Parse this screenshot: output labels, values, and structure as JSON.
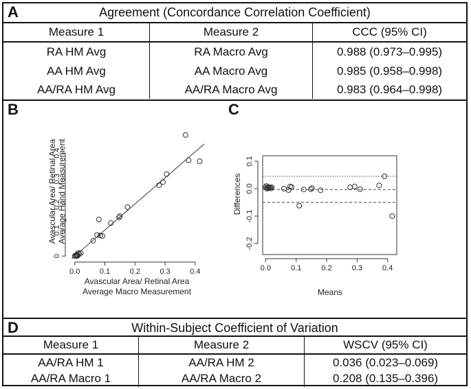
{
  "panelA": {
    "letter": "A",
    "title": "Agreement (Concordance Correlation Coefficient)",
    "headers": [
      "Measure 1",
      "Measure 2",
      "CCC (95% CI)"
    ],
    "rows": [
      [
        "RA HM Avg",
        "RA Macro Avg",
        "0.988 (0.973–0.995)"
      ],
      [
        "AA HM Avg",
        "AA Macro Avg",
        "0.985 (0.958–0.998)"
      ],
      [
        "AA/RA HM Avg",
        "AA/RA Macro Avg",
        "0.983 (0.964–0.998)"
      ]
    ]
  },
  "panelB": {
    "letter": "B"
  },
  "panelC": {
    "letter": "C"
  },
  "panelD": {
    "letter": "D",
    "title": "Within-Subject Coefficient of Variation",
    "headers": [
      "Measure 1",
      "Measure 2",
      "WSCV (95% CI)"
    ],
    "rows": [
      [
        "AA/RA HM 1",
        "AA/RA HM 2",
        "0.036 (0.023–0.069)"
      ],
      [
        "AA/RA Macro 1",
        "AA/RA Macro 2",
        "0.208 (0.135–0.396)"
      ]
    ]
  },
  "chart_data": [
    {
      "type": "scatter",
      "panel": "B",
      "xlabel": "Avascular Area/ Retinal Area\nAverage Macro Measurement",
      "ylabel": "Avascular Area/ Retinal Area\nAverage Hand Measurement",
      "xlim": [
        -0.02,
        0.43
      ],
      "ylim": [
        -0.01,
        0.48
      ],
      "xticks": [
        "0.0",
        "0.1",
        "0.2",
        "0.3",
        "0.4"
      ],
      "yticks": [
        "0",
        "0.1",
        "0.2",
        "0.3",
        "0.4"
      ],
      "fit_line": {
        "x": [
          -0.01,
          0.43
        ],
        "y": [
          -0.01,
          0.435
        ]
      },
      "points": [
        [
          0.0,
          0.0
        ],
        [
          0.003,
          0.003
        ],
        [
          0.005,
          0.001
        ],
        [
          0.007,
          0.006
        ],
        [
          0.008,
          0.004
        ],
        [
          0.01,
          0.002
        ],
        [
          0.012,
          0.012
        ],
        [
          0.015,
          0.008
        ],
        [
          0.02,
          0.012
        ],
        [
          0.006,
          0.0
        ],
        [
          0.061,
          0.06
        ],
        [
          0.074,
          0.082
        ],
        [
          0.08,
          0.142
        ],
        [
          0.085,
          0.08
        ],
        [
          0.092,
          0.078
        ],
        [
          0.12,
          0.128
        ],
        [
          0.147,
          0.15
        ],
        [
          0.15,
          0.155
        ],
        [
          0.175,
          0.19
        ],
        [
          0.28,
          0.275
        ],
        [
          0.293,
          0.287
        ],
        [
          0.305,
          0.318
        ],
        [
          0.368,
          0.47
        ],
        [
          0.378,
          0.372
        ],
        [
          0.415,
          0.368
        ]
      ]
    },
    {
      "type": "scatter",
      "panel": "C",
      "xlabel": "Means",
      "ylabel": "Differences",
      "xlim": [
        -0.01,
        0.43
      ],
      "ylim": [
        -0.24,
        0.12
      ],
      "xticks": [
        "0.0",
        "0.1",
        "0.2",
        "0.3",
        "0.4"
      ],
      "yticks": [
        "-0.2",
        "-0.1",
        "0.0",
        "0.1"
      ],
      "reference_lines": [
        {
          "y": 0.045,
          "style": "dotted"
        },
        {
          "y": -0.003,
          "style": "dashed"
        },
        {
          "y": -0.05,
          "style": "dashed"
        }
      ],
      "points": [
        [
          0.0,
          0.005
        ],
        [
          0.002,
          0.01
        ],
        [
          0.004,
          0.0
        ],
        [
          0.006,
          0.005
        ],
        [
          0.008,
          0.002
        ],
        [
          0.01,
          0.006
        ],
        [
          0.012,
          0.003
        ],
        [
          0.015,
          0.004
        ],
        [
          0.018,
          0.001
        ],
        [
          0.02,
          0.005
        ],
        [
          0.06,
          0.0
        ],
        [
          0.075,
          -0.005
        ],
        [
          0.08,
          0.008
        ],
        [
          0.085,
          0.006
        ],
        [
          0.11,
          -0.062
        ],
        [
          0.125,
          -0.003
        ],
        [
          0.148,
          -0.002
        ],
        [
          0.152,
          0.002
        ],
        [
          0.18,
          -0.006
        ],
        [
          0.277,
          0.005
        ],
        [
          0.292,
          0.008
        ],
        [
          0.31,
          -0.002
        ],
        [
          0.372,
          0.012
        ],
        [
          0.39,
          0.045
        ],
        [
          0.415,
          -0.1
        ]
      ]
    }
  ]
}
